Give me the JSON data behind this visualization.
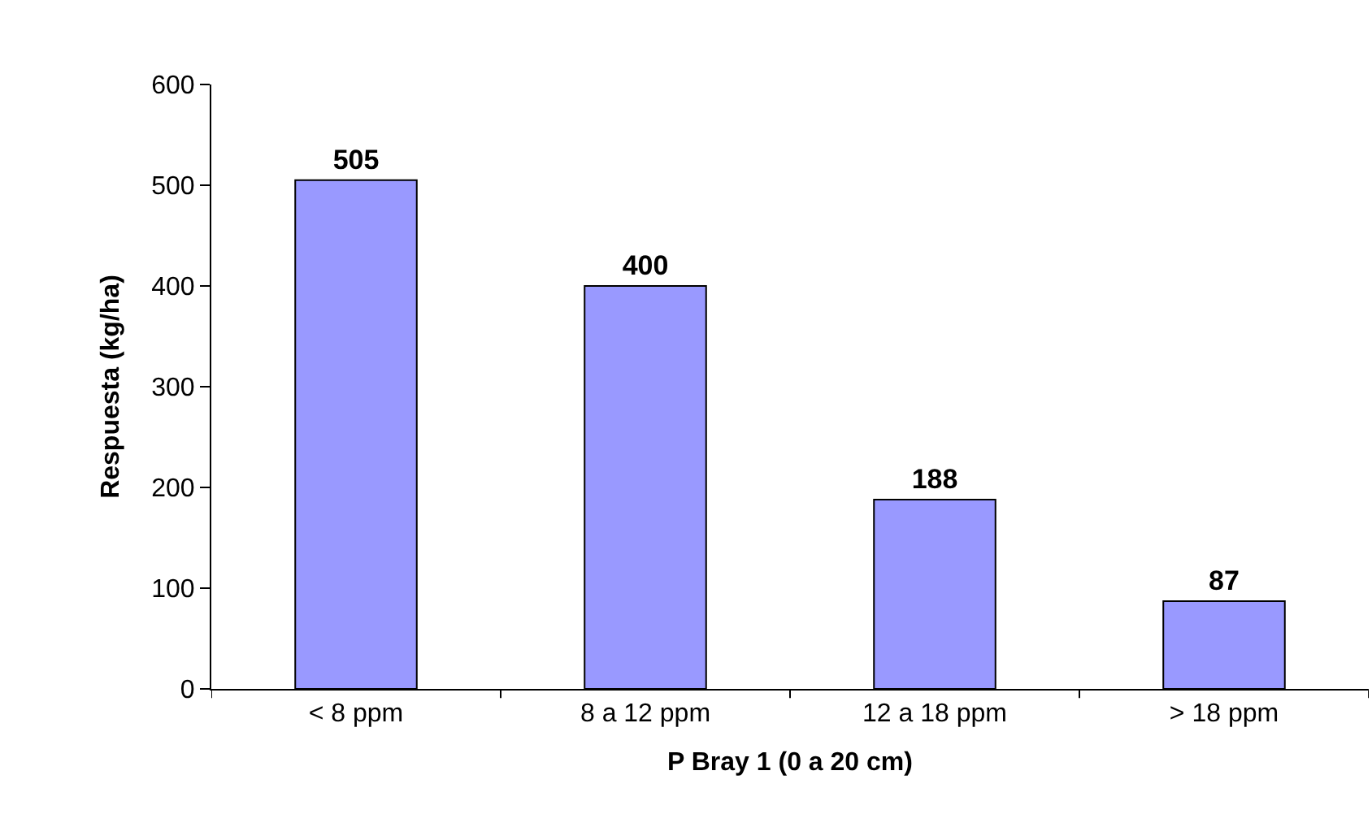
{
  "chart_data": {
    "type": "bar",
    "xlabel": "P Bray 1 (0 a 20 cm)",
    "ylabel": "Respuesta (kg/ha)",
    "categories": [
      "< 8 ppm",
      "8 a 12 ppm",
      "12 a 18 ppm",
      "> 18 ppm"
    ],
    "values": [
      505,
      400,
      188,
      87
    ],
    "color": "#9999ff",
    "ylim": [
      0,
      600
    ],
    "yticks": [
      0,
      100,
      200,
      300,
      400,
      500,
      600
    ],
    "data_labels": true
  }
}
